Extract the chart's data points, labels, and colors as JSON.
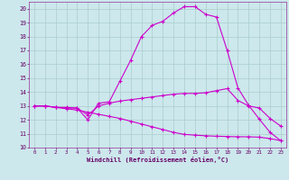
{
  "xlabel": "Windchill (Refroidissement éolien,°C)",
  "bg_color": "#cce8ec",
  "grid_color": "#aacccc",
  "line_color": "#cc00cc",
  "xlim": [
    -0.5,
    23.5
  ],
  "ylim": [
    10,
    20.5
  ],
  "yticks": [
    10,
    11,
    12,
    13,
    14,
    15,
    16,
    17,
    18,
    19,
    20
  ],
  "xticks": [
    0,
    1,
    2,
    3,
    4,
    5,
    6,
    7,
    8,
    9,
    10,
    11,
    12,
    13,
    14,
    15,
    16,
    17,
    18,
    19,
    20,
    21,
    22,
    23
  ],
  "curve1_x": [
    0,
    1,
    2,
    3,
    4,
    5,
    6,
    7,
    8,
    9,
    10,
    11,
    12,
    13,
    14,
    15,
    16,
    17,
    18,
    19,
    20,
    21,
    22,
    23
  ],
  "curve1_y": [
    13.0,
    13.0,
    12.9,
    12.9,
    12.85,
    12.0,
    13.2,
    13.3,
    14.8,
    16.3,
    18.0,
    18.8,
    19.1,
    19.7,
    20.15,
    20.15,
    19.6,
    19.4,
    17.0,
    14.3,
    13.05,
    12.05,
    11.1,
    10.5
  ],
  "curve2_x": [
    0,
    1,
    2,
    3,
    4,
    5,
    6,
    7,
    8,
    9,
    10,
    11,
    12,
    13,
    14,
    15,
    16,
    17,
    18,
    19,
    20,
    21,
    22,
    23
  ],
  "curve2_y": [
    13.0,
    13.0,
    12.9,
    12.85,
    12.85,
    12.35,
    13.0,
    13.2,
    13.35,
    13.45,
    13.55,
    13.65,
    13.75,
    13.85,
    13.9,
    13.9,
    13.95,
    14.1,
    14.25,
    13.4,
    13.0,
    12.85,
    12.1,
    11.55
  ],
  "curve3_x": [
    0,
    1,
    2,
    3,
    4,
    5,
    6,
    7,
    8,
    9,
    10,
    11,
    12,
    13,
    14,
    15,
    16,
    17,
    18,
    19,
    20,
    21,
    22,
    23
  ],
  "curve3_y": [
    13.0,
    13.0,
    12.9,
    12.8,
    12.7,
    12.55,
    12.4,
    12.25,
    12.1,
    11.9,
    11.7,
    11.5,
    11.3,
    11.1,
    10.95,
    10.9,
    10.85,
    10.82,
    10.8,
    10.78,
    10.78,
    10.75,
    10.65,
    10.5
  ]
}
